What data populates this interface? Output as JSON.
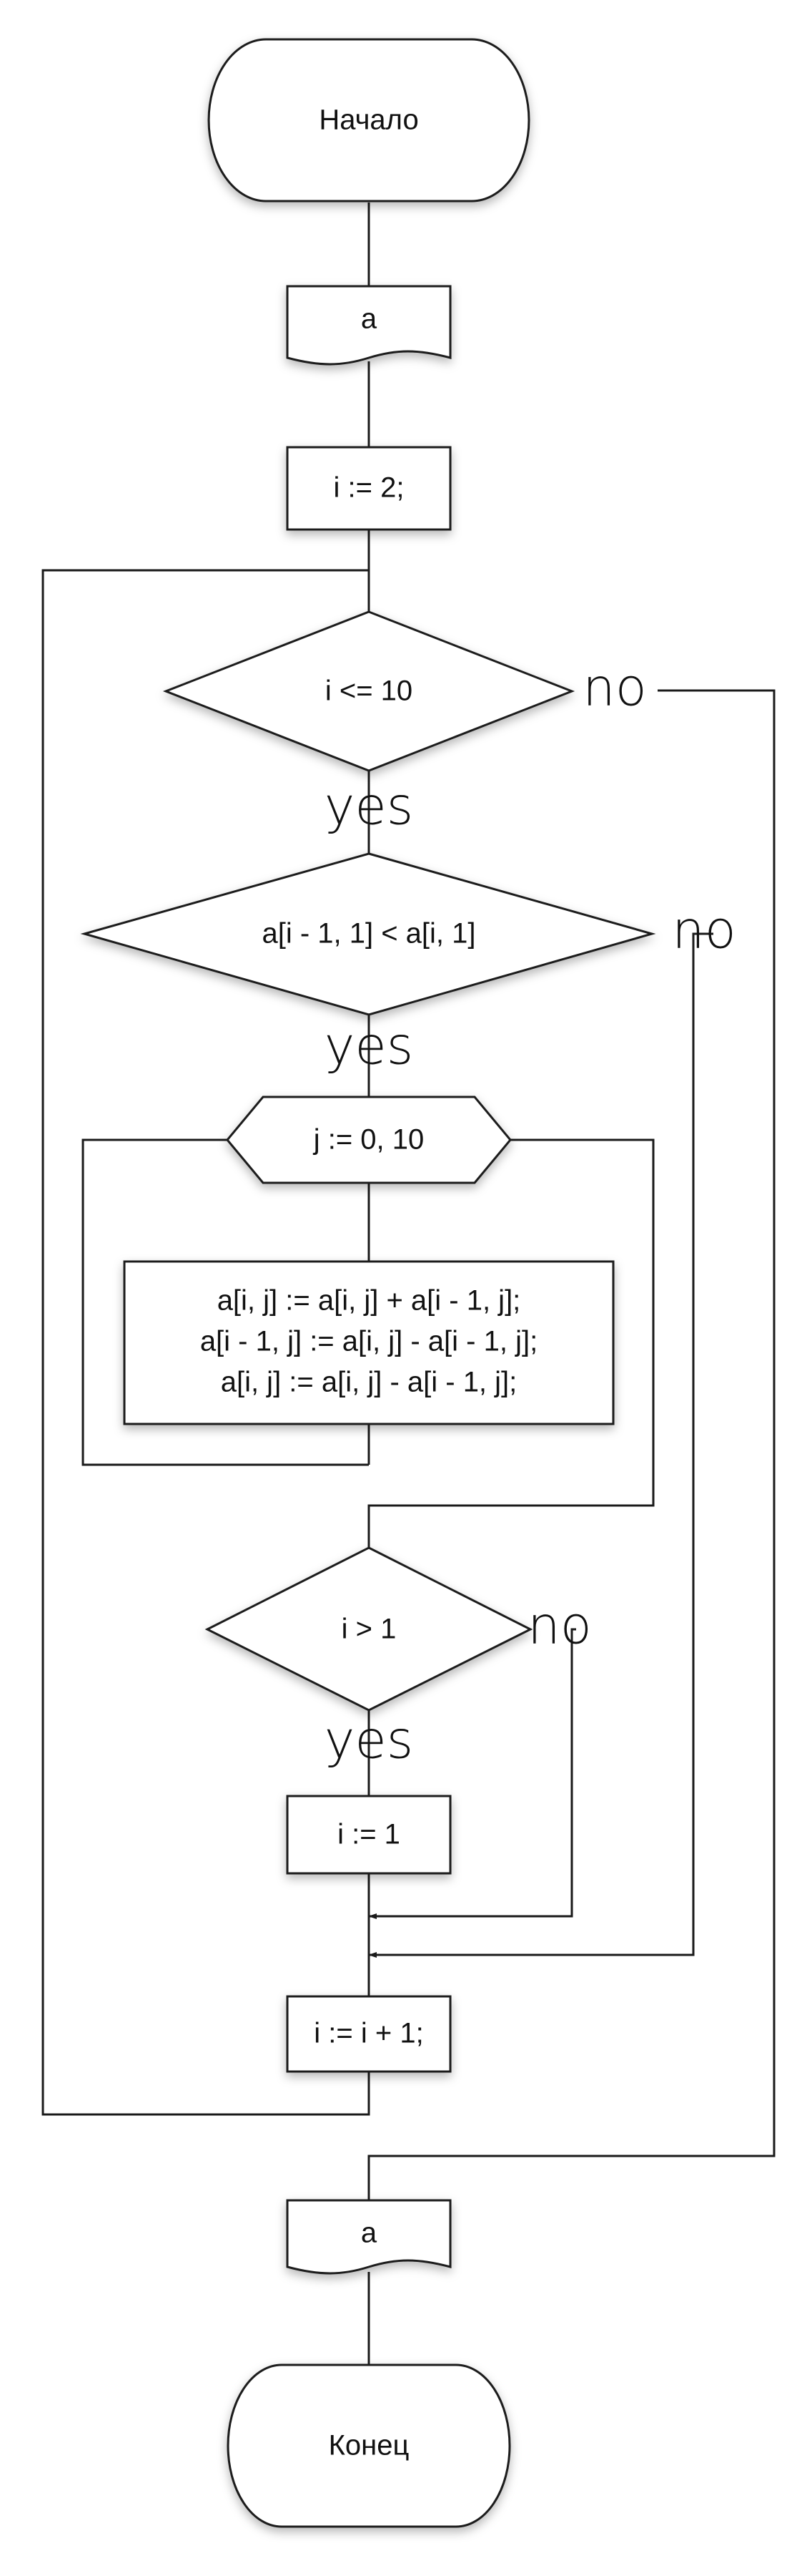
{
  "flowchart": {
    "start": "Начало",
    "input": "a",
    "init": "i := 2;",
    "cond_outer": "i <= 10",
    "cond_compare": "a[i - 1, 1] < a[i, 1]",
    "loop_j": "j := 0, 10",
    "swap_lines": [
      "a[i, j] := a[i, j] + a[i - 1, j];",
      "a[i - 1, j] := a[i, j] - a[i - 1, j];",
      "a[i, j] := a[i, j] - a[i - 1, j];"
    ],
    "cond_i": "i > 1",
    "assign_i": "i := 1",
    "increment": "i := i + 1;",
    "output": "a",
    "end": "Конец",
    "yes_label": "yes",
    "no_label": "no"
  }
}
